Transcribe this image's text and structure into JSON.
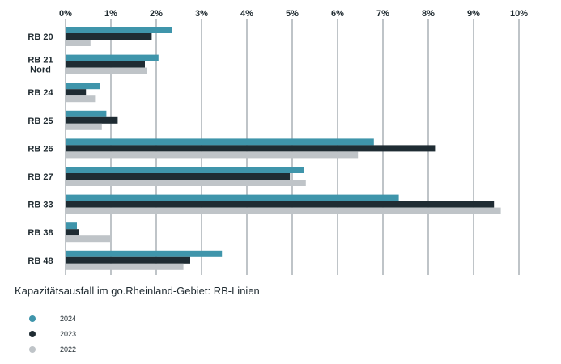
{
  "chart_data": {
    "type": "bar",
    "orientation": "horizontal",
    "title": "Kapazitätsausfall im go.Rheinland-Gebiet: RB-Linien",
    "categories": [
      [
        "RB 20"
      ],
      [
        "RB 21",
        "Nord"
      ],
      [
        "RB 24"
      ],
      [
        "RB 25"
      ],
      [
        "RB 26"
      ],
      [
        "RB 27"
      ],
      [
        "RB 33"
      ],
      [
        "RB 38"
      ],
      [
        "RB 48"
      ]
    ],
    "series": [
      {
        "name": "2024",
        "color": "#3f95ab",
        "values": [
          2.35,
          2.05,
          0.75,
          0.9,
          6.8,
          5.25,
          7.35,
          0.25,
          3.45
        ]
      },
      {
        "name": "2023",
        "color": "#1f2c33",
        "values": [
          1.9,
          1.75,
          0.45,
          1.15,
          8.15,
          4.95,
          9.45,
          0.3,
          2.75
        ]
      },
      {
        "name": "2022",
        "color": "#bfc4c8",
        "values": [
          0.55,
          1.8,
          0.65,
          0.8,
          6.45,
          5.3,
          9.6,
          1.0,
          2.6
        ]
      }
    ],
    "xlim": [
      0,
      10
    ],
    "xticks": [
      "0%",
      "1%",
      "2%",
      "3%",
      "4%",
      "5%",
      "6%",
      "7%",
      "8%",
      "9%",
      "10%"
    ],
    "grid": true,
    "legend_position": "bottom-left"
  }
}
